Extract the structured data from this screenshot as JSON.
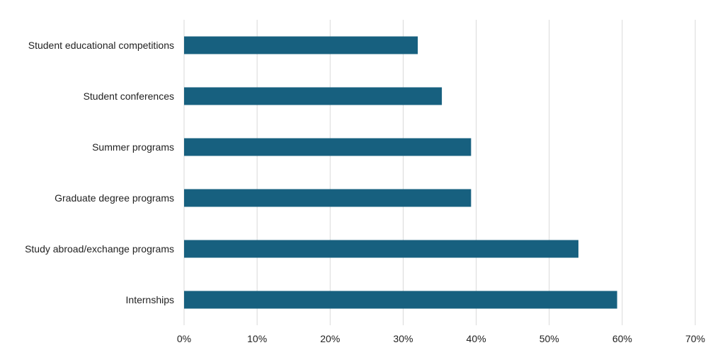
{
  "chart_data": {
    "type": "bar",
    "orientation": "horizontal",
    "categories": [
      "Student educational competitions",
      "Student conferences",
      "Summer programs",
      "Graduate degree programs",
      "Study abroad/exchange programs",
      "Internships"
    ],
    "values": [
      32,
      35.3,
      39.3,
      39.3,
      54,
      59.3
    ],
    "xlim": [
      0,
      70
    ],
    "xticks": [
      0,
      10,
      20,
      30,
      40,
      50,
      60,
      70
    ],
    "xtick_labels": [
      "0%",
      "10%",
      "20%",
      "30%",
      "40%",
      "50%",
      "60%",
      "70%"
    ],
    "grid": "vertical",
    "legend": "none",
    "bar_color": "#17607f",
    "grid_color": "#d9d9d9"
  }
}
